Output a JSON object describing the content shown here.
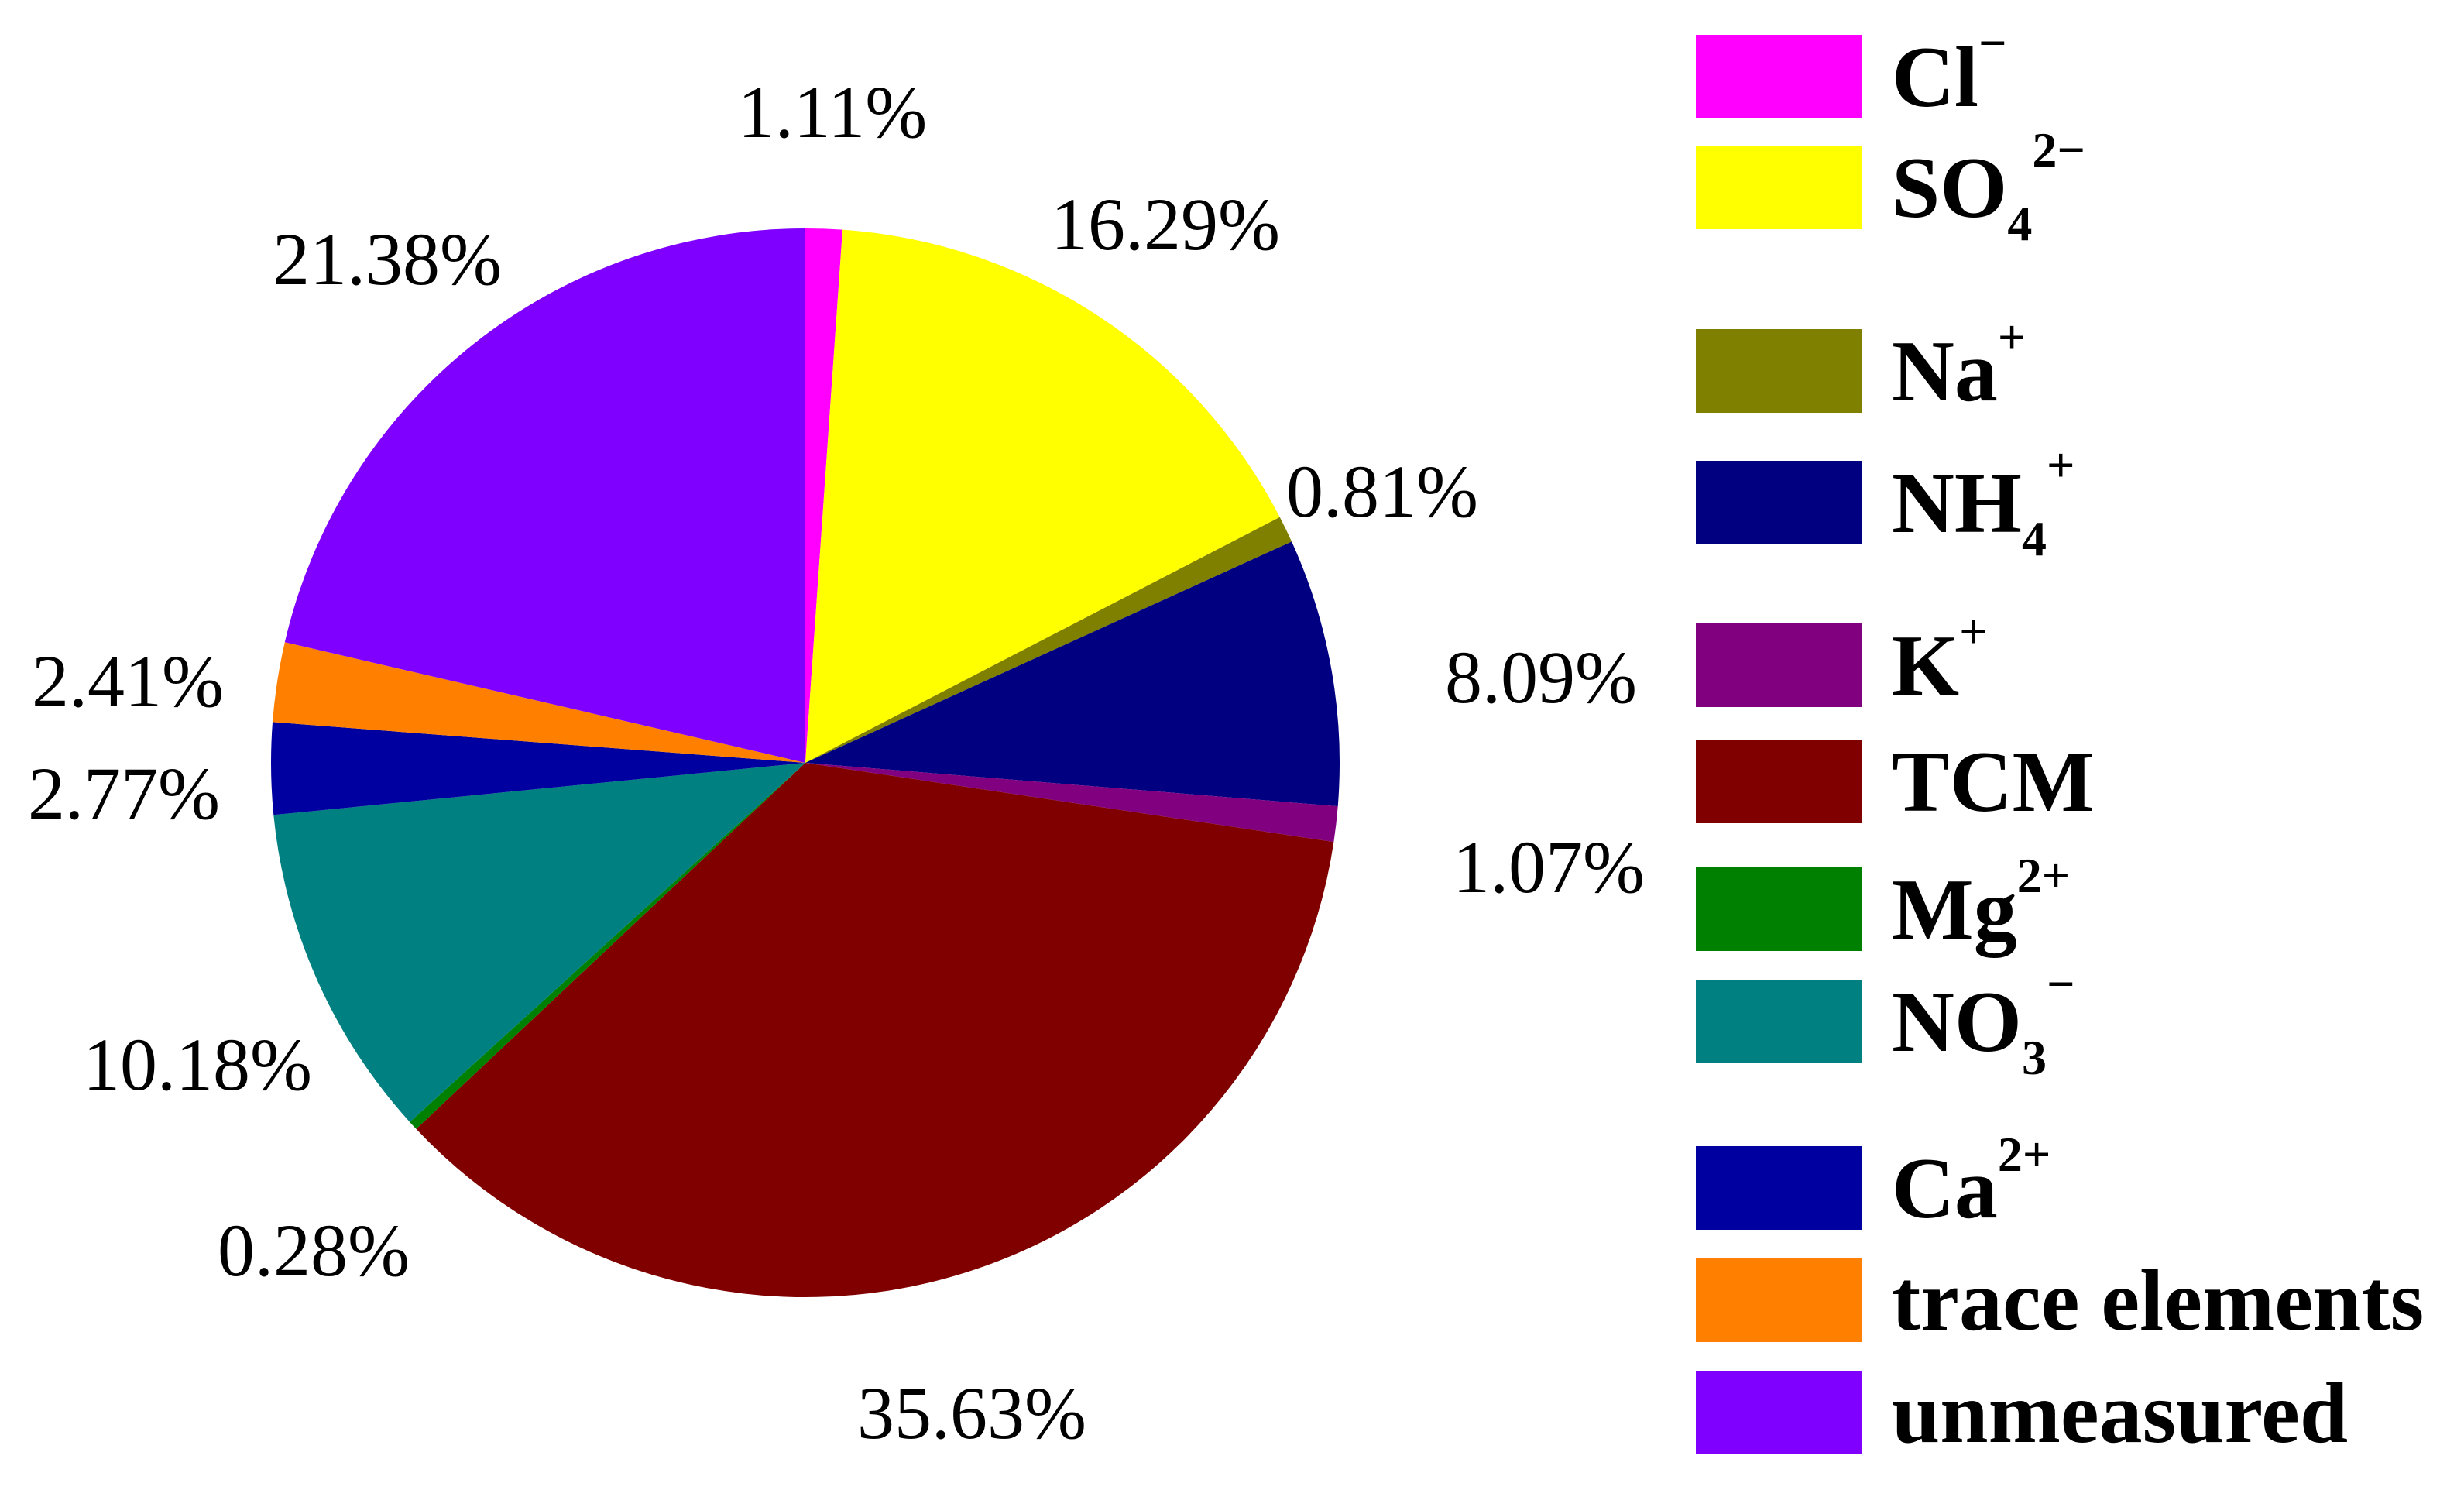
{
  "chart_data": {
    "type": "pie",
    "title": "",
    "legend_position": "right",
    "start_angle_deg": 90,
    "direction": "clockwise",
    "slices": [
      {
        "label": "Cl",
        "sup": "−",
        "sub": "",
        "value": 1.11,
        "value_label": "1.11%",
        "color": "#ff00ff"
      },
      {
        "label": "SO",
        "sup": "2−",
        "sub": "4",
        "value": 16.29,
        "value_label": "16.29%",
        "color": "#ffff00"
      },
      {
        "label": "Na",
        "sup": "+",
        "sub": "",
        "value": 0.81,
        "value_label": "0.81%",
        "color": "#808000"
      },
      {
        "label": "NH",
        "sup": "+",
        "sub": "4",
        "value": 8.09,
        "value_label": "8.09%",
        "color": "#000080"
      },
      {
        "label": "K",
        "sup": "+",
        "sub": "",
        "value": 1.07,
        "value_label": "1.07%",
        "color": "#800080"
      },
      {
        "label": "TCM",
        "sup": "",
        "sub": "",
        "value": 35.63,
        "value_label": "35.63%",
        "color": "#800000"
      },
      {
        "label": "Mg",
        "sup": "2+",
        "sub": "",
        "value": 0.28,
        "value_label": "0.28%",
        "color": "#008000"
      },
      {
        "label": "NO",
        "sup": "−",
        "sub": "3",
        "value": 10.18,
        "value_label": "10.18%",
        "color": "#008080"
      },
      {
        "label": "Ca",
        "sup": "2+",
        "sub": "",
        "value": 2.77,
        "value_label": "2.77%",
        "color": "#0000a0"
      },
      {
        "label": "trace elements",
        "sup": "",
        "sub": "",
        "value": 2.41,
        "value_label": "2.41%",
        "color": "#ff8000"
      },
      {
        "label": "unmeasured",
        "sup": "",
        "sub": "",
        "value": 21.38,
        "value_label": "21.38%",
        "color": "#8000ff"
      }
    ]
  }
}
